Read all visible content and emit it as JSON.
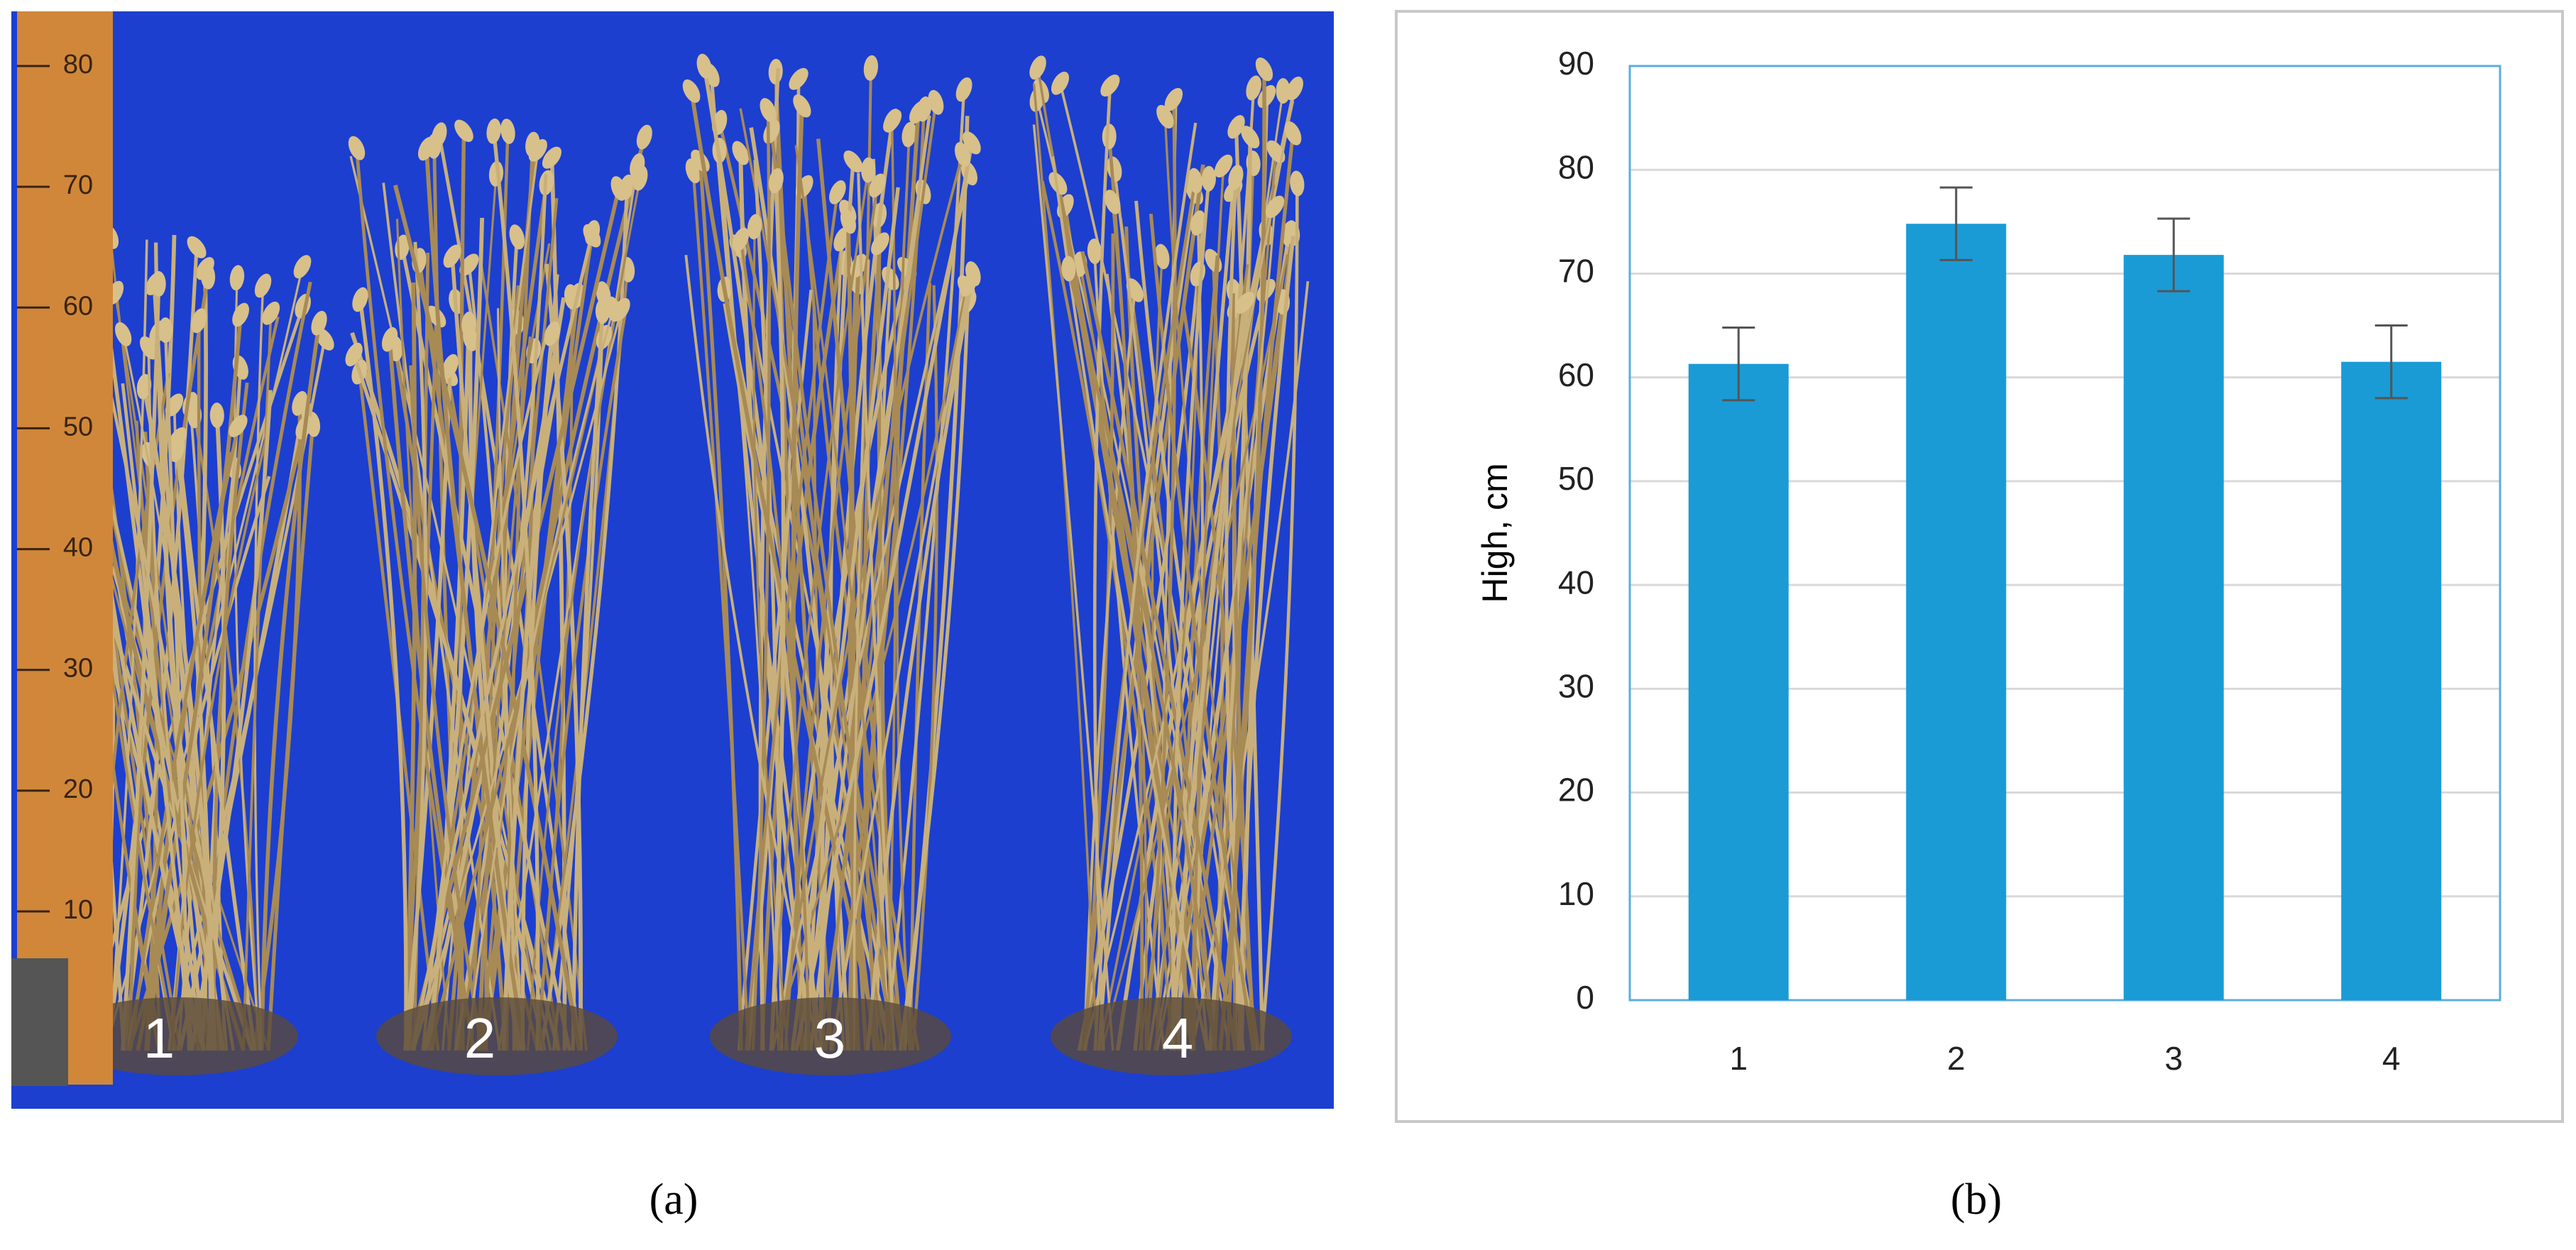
{
  "chart_data": {
    "type": "bar",
    "categories": [
      "1",
      "2",
      "3",
      "4"
    ],
    "values": [
      61.3,
      74.8,
      71.8,
      61.5
    ],
    "errors": [
      3.5,
      3.5,
      3.5,
      3.5
    ],
    "color": "#1a9bd6",
    "ylabel": "High, cm",
    "ylim": [
      0,
      90
    ],
    "yticks": [
      0,
      10,
      20,
      30,
      40,
      50,
      60,
      70,
      80,
      90
    ],
    "grid": true
  },
  "panel_a": {
    "caption": "(a)",
    "labels": [
      "1",
      "2",
      "3",
      "4"
    ],
    "ruler": [
      10,
      20,
      30,
      40,
      50,
      60,
      70,
      80
    ]
  },
  "panel_b": {
    "caption": "(b)"
  }
}
